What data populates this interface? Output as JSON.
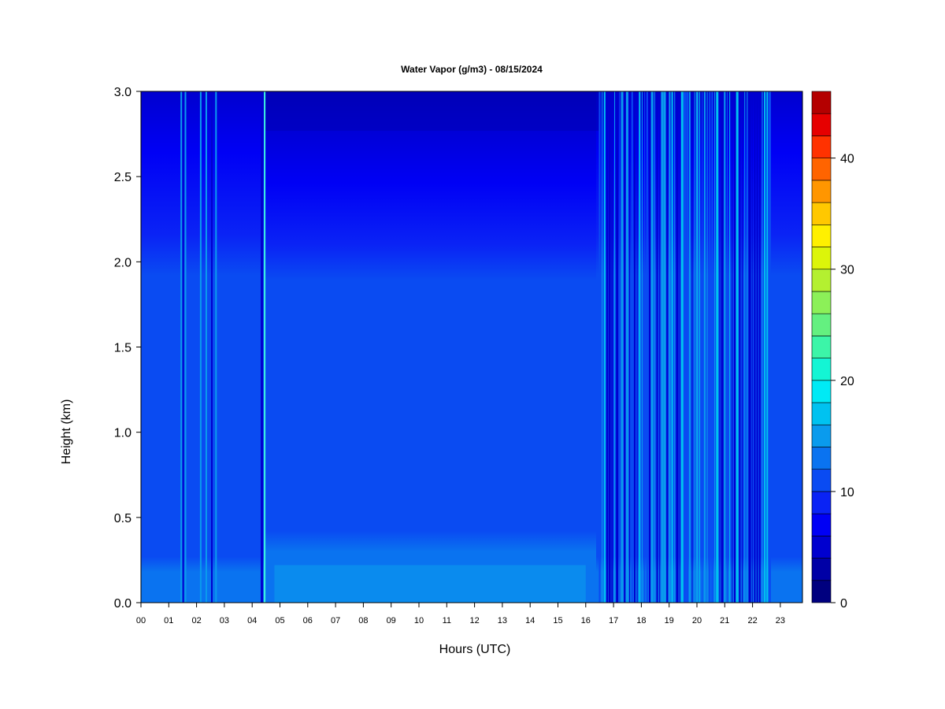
{
  "chart_data": {
    "type": "heatmap",
    "title": "Water Vapor (g/m3) - 08/15/2024",
    "xlabel": "Hours (UTC)",
    "ylabel": "Height (km)",
    "x_ticks": [
      "00",
      "01",
      "02",
      "03",
      "04",
      "05",
      "06",
      "07",
      "08",
      "09",
      "10",
      "11",
      "12",
      "13",
      "14",
      "15",
      "16",
      "17",
      "18",
      "19",
      "20",
      "21",
      "22",
      "23"
    ],
    "xlim": [
      0,
      23.85
    ],
    "ylim": [
      0,
      3.0
    ],
    "y_ticks": [
      "0.0",
      "0.5",
      "1.0",
      "1.5",
      "2.0",
      "2.5",
      "3.0"
    ],
    "colorbar": {
      "range": [
        0,
        46
      ],
      "ticks": [
        "0",
        "10",
        "20",
        "30",
        "40"
      ],
      "levels": [
        0,
        2,
        4,
        6,
        8,
        10,
        12,
        14,
        16,
        18,
        20,
        22,
        24,
        26,
        28,
        30,
        32,
        34,
        36,
        38,
        40,
        42,
        44,
        46
      ],
      "colors": [
        "#00007F",
        "#0000A6",
        "#0000CF",
        "#0000F5",
        "#0A23F5",
        "#0A4BF2",
        "#0A73F0",
        "#0A9BED",
        "#00C2F0",
        "#00EAF5",
        "#14F5D4",
        "#3CF5A8",
        "#64F080",
        "#8CF058",
        "#B4F030",
        "#DCF50A",
        "#FFF000",
        "#FFC800",
        "#FF9600",
        "#FF6400",
        "#FF3200",
        "#E60000",
        "#B40000",
        "#7F0000"
      ]
    },
    "typical_profile": [
      {
        "height_range_km": [
          0.0,
          0.25
        ],
        "value_g_m3": 13
      },
      {
        "height_range_km": [
          0.25,
          2.0
        ],
        "value_g_m3": 11
      },
      {
        "height_range_km": [
          2.0,
          2.7
        ],
        "value_g_m3": 9
      },
      {
        "height_range_km": [
          2.7,
          3.0
        ],
        "value_g_m3": 7
      }
    ],
    "periods": [
      {
        "hours": [
          0.0,
          1.5
        ],
        "note": "clear"
      },
      {
        "hours": [
          1.5,
          2.7
        ],
        "note": "intermittent spikes"
      },
      {
        "hours": [
          4.45,
          4.45
        ],
        "note": "spike"
      },
      {
        "hours": [
          16.5,
          22.6
        ],
        "note": "frequent spikes"
      }
    ]
  }
}
